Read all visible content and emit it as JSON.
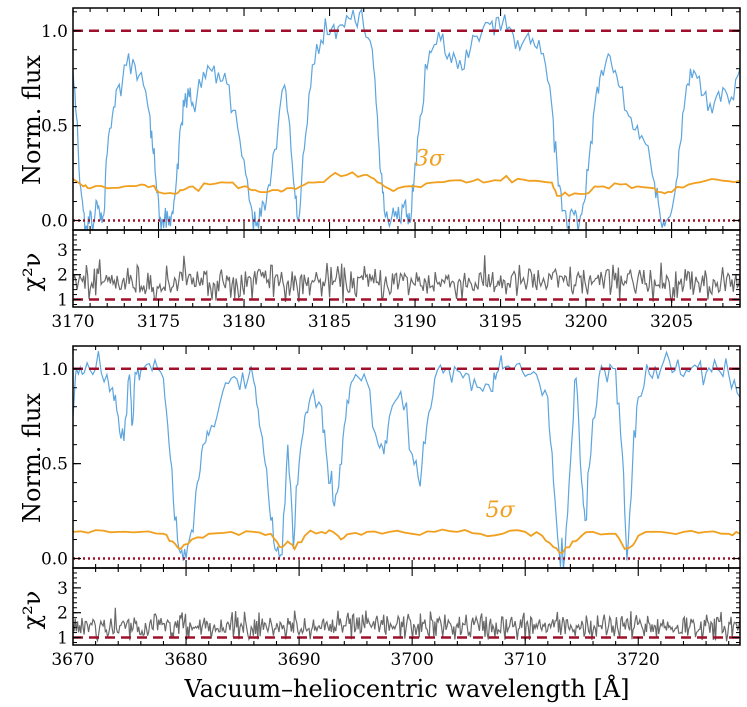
{
  "chart_data": [
    {
      "type": "line",
      "panel": "top-main",
      "ylabel": "Norm. flux",
      "xlim": [
        3170,
        3209
      ],
      "ylim": [
        -0.05,
        1.12
      ],
      "yticks": [
        "0.0",
        "0.5",
        "1.0"
      ],
      "ytick_values": [
        0.0,
        0.5,
        1.0
      ],
      "annotation": "3σ",
      "annotation_pos": {
        "x": 3190,
        "y": 0.29
      },
      "series": [
        {
          "name": "flux",
          "color": "#5DA5DE",
          "x": [
            3170.0,
            3170.2,
            3170.4,
            3170.6,
            3170.8,
            3171.0,
            3171.2,
            3171.4,
            3171.6,
            3171.8,
            3172.0,
            3172.3,
            3172.6,
            3173.0,
            3173.5,
            3174.0,
            3174.5,
            3174.7,
            3174.9,
            3175.1,
            3175.3,
            3175.5,
            3175.7,
            3175.9,
            3176.1,
            3176.3,
            3176.5,
            3176.8,
            3177.0,
            3177.5,
            3178.0,
            3178.5,
            3179.0,
            3179.5,
            3180.0,
            3180.4,
            3180.7,
            3181.0,
            3181.3,
            3181.6,
            3182.0,
            3182.3,
            3182.6,
            3182.9,
            3183.1,
            3183.3,
            3183.6,
            3184.0,
            3184.5,
            3185.0,
            3185.5,
            3186.0,
            3186.5,
            3187.0,
            3187.5,
            3187.8,
            3188.0,
            3188.2,
            3188.5,
            3188.8,
            3189.1,
            3189.4,
            3189.6,
            3189.8,
            3190.0,
            3190.3,
            3190.7,
            3191.0,
            3191.5,
            3192.0,
            3192.5,
            3193.0,
            3193.5,
            3194.0,
            3194.5,
            3195.0,
            3195.5,
            3196.0,
            3196.5,
            3197.0,
            3197.5,
            3198.0,
            3198.3,
            3198.6,
            3199.0,
            3199.3,
            3199.6,
            3199.9,
            3200.2,
            3200.5,
            3200.8,
            3201.2,
            3201.6,
            3202.0,
            3202.5,
            3203.0,
            3203.5,
            3204.0,
            3204.3,
            3204.6,
            3204.9,
            3205.2,
            3205.5,
            3205.8,
            3206.1,
            3206.5,
            3207.0,
            3207.5,
            3208.0,
            3208.5,
            3209.0
          ],
          "y": [
            0.78,
            0.55,
            0.2,
            0.05,
            -0.03,
            0.05,
            -0.02,
            0.1,
            0.0,
            0.03,
            0.35,
            0.55,
            0.7,
            0.82,
            0.85,
            0.78,
            0.55,
            0.35,
            0.15,
            0.02,
            -0.04,
            0.05,
            -0.03,
            0.1,
            0.3,
            0.5,
            0.6,
            0.65,
            0.62,
            0.7,
            0.8,
            0.78,
            0.72,
            0.58,
            0.32,
            0.08,
            -0.03,
            0.02,
            0.1,
            0.25,
            0.5,
            0.7,
            0.55,
            0.2,
            0.02,
            0.1,
            0.45,
            0.82,
            0.95,
            0.98,
            1.02,
            1.08,
            1.05,
            1.02,
            0.9,
            0.55,
            0.25,
            0.05,
            -0.03,
            0.02,
            0.0,
            0.1,
            -0.02,
            0.05,
            0.3,
            0.55,
            0.8,
            0.9,
            0.95,
            0.88,
            0.8,
            0.9,
            0.97,
            1.02,
            1.05,
            1.0,
            1.02,
            0.95,
            0.97,
            0.92,
            0.88,
            0.6,
            0.3,
            0.05,
            -0.03,
            0.03,
            -0.02,
            0.1,
            0.35,
            0.6,
            0.75,
            0.85,
            0.78,
            0.7,
            0.55,
            0.5,
            0.4,
            0.2,
            0.05,
            -0.03,
            0.02,
            0.15,
            0.4,
            0.65,
            0.8,
            0.75,
            0.68,
            0.62,
            0.7,
            0.65,
            0.8
          ]
        },
        {
          "name": "3σ",
          "color": "#F0A01E",
          "x": [
            3170.0,
            3170.6,
            3171.0,
            3172.0,
            3173.0,
            3174.0,
            3174.6,
            3175.0,
            3176.0,
            3176.4,
            3177.0,
            3178.0,
            3179.0,
            3180.0,
            3180.5,
            3181.0,
            3182.0,
            3182.5,
            3183.3,
            3184.0,
            3185.0,
            3186.0,
            3187.0,
            3187.6,
            3188.2,
            3189.0,
            3190.0,
            3191.0,
            3192.0,
            3193.0,
            3194.0,
            3195.0,
            3196.0,
            3197.0,
            3198.0,
            3198.3,
            3199.0,
            3200.0,
            3200.5,
            3201.0,
            3202.0,
            3203.0,
            3204.0,
            3204.4,
            3205.0,
            3206.0,
            3207.0,
            3208.0,
            3209.0
          ],
          "y": [
            0.22,
            0.18,
            0.17,
            0.17,
            0.18,
            0.19,
            0.18,
            0.15,
            0.14,
            0.16,
            0.18,
            0.19,
            0.2,
            0.18,
            0.16,
            0.15,
            0.16,
            0.17,
            0.18,
            0.2,
            0.23,
            0.24,
            0.24,
            0.22,
            0.18,
            0.17,
            0.18,
            0.2,
            0.21,
            0.2,
            0.2,
            0.21,
            0.22,
            0.21,
            0.2,
            0.13,
            0.13,
            0.14,
            0.18,
            0.18,
            0.19,
            0.18,
            0.17,
            0.15,
            0.15,
            0.19,
            0.21,
            0.21,
            0.21
          ]
        }
      ],
      "reference_lines": [
        {
          "y": 1.0,
          "style": "dashed",
          "color": "#A0102A"
        },
        {
          "y": 0.0,
          "style": "dotted",
          "color": "#A0102A"
        }
      ]
    },
    {
      "type": "line",
      "panel": "top-residual",
      "ylabel": "χ²ν",
      "xlim": [
        3170,
        3209
      ],
      "ylim": [
        0.7,
        3.8
      ],
      "yticks": [
        "1",
        "2",
        "3"
      ],
      "ytick_values": [
        1,
        2,
        3
      ],
      "xticks": [
        "3170",
        "3175",
        "3180",
        "3185",
        "3190",
        "3195",
        "3200",
        "3205"
      ],
      "xtick_values": [
        3170,
        3175,
        3180,
        3185,
        3190,
        3195,
        3200,
        3205
      ],
      "series": [
        {
          "name": "chi2",
          "color": "#696969",
          "mean": 1.7,
          "spread": 0.55,
          "n_points": 500
        }
      ],
      "reference_lines": [
        {
          "y": 1.0,
          "style": "dashed",
          "color": "#A0102A"
        }
      ]
    },
    {
      "type": "line",
      "panel": "bottom-main",
      "ylabel": "Norm. flux",
      "xlim": [
        3670,
        3729
      ],
      "ylim": [
        -0.05,
        1.12
      ],
      "yticks": [
        "0.0",
        "0.5",
        "1.0"
      ],
      "ytick_values": [
        0.0,
        0.5,
        1.0
      ],
      "annotation": "5σ",
      "annotation_pos": {
        "x": 3706.5,
        "y": 0.22
      },
      "series": [
        {
          "name": "flux",
          "color": "#5DA5DE",
          "x": [
            3670.0,
            3670.3,
            3671.0,
            3672.0,
            3673.0,
            3673.5,
            3674.0,
            3674.5,
            3675.0,
            3675.2,
            3675.5,
            3676.0,
            3677.0,
            3678.0,
            3678.5,
            3679.0,
            3679.5,
            3680.0,
            3680.5,
            3681.0,
            3681.5,
            3682.0,
            3683.0,
            3684.0,
            3685.0,
            3686.0,
            3686.5,
            3687.0,
            3687.5,
            3688.0,
            3688.5,
            3689.0,
            3689.5,
            3690.0,
            3690.5,
            3691.0,
            3692.0,
            3692.5,
            3693.0,
            3693.5,
            3694.0,
            3694.5,
            3695.0,
            3696.0,
            3697.0,
            3697.5,
            3698.0,
            3699.0,
            3700.0,
            3700.7,
            3701.3,
            3702.0,
            3703.0,
            3704.0,
            3705.0,
            3706.0,
            3707.0,
            3707.5,
            3708.0,
            3709.0,
            3710.0,
            3711.0,
            3712.0,
            3712.5,
            3713.0,
            3713.5,
            3714.0,
            3714.5,
            3715.0,
            3715.3,
            3715.8,
            3716.5,
            3717.0,
            3718.0,
            3718.6,
            3719.0,
            3719.5,
            3720.0,
            3721.0,
            3722.0,
            3723.0,
            3724.0,
            3725.0,
            3726.0,
            3727.0,
            3728.0,
            3729.0
          ],
          "y": [
            0.75,
            1.0,
            0.98,
            1.0,
            0.97,
            0.9,
            0.75,
            0.62,
            0.97,
            0.7,
            0.98,
            0.99,
            0.99,
            0.95,
            0.6,
            0.2,
            0.03,
            0.0,
            0.15,
            0.4,
            0.6,
            0.65,
            0.82,
            0.95,
            0.98,
            0.93,
            0.7,
            0.5,
            0.2,
            0.04,
            0.02,
            0.6,
            0.05,
            0.5,
            0.75,
            0.85,
            0.8,
            0.5,
            0.3,
            0.38,
            0.7,
            0.9,
            0.97,
            0.93,
            0.6,
            0.55,
            0.75,
            0.88,
            0.55,
            0.38,
            0.7,
            0.95,
            1.0,
            0.99,
            0.97,
            0.9,
            0.88,
            0.98,
            1.0,
            1.0,
            0.96,
            0.97,
            0.85,
            0.4,
            0.04,
            0.02,
            0.5,
            0.95,
            0.4,
            0.2,
            0.55,
            0.95,
            1.0,
            1.0,
            0.55,
            -0.01,
            0.5,
            0.85,
            0.97,
            1.0,
            0.98,
            0.96,
            1.02,
            0.98,
            1.0,
            0.97,
            0.85
          ]
        },
        {
          "name": "5σ",
          "color": "#F0A01E",
          "x": [
            3670.0,
            3672.0,
            3674.0,
            3676.0,
            3678.0,
            3678.8,
            3679.5,
            3680.5,
            3682.0,
            3684.0,
            3686.0,
            3687.5,
            3688.3,
            3689.0,
            3689.6,
            3690.5,
            3692.0,
            3693.0,
            3693.7,
            3694.5,
            3696.0,
            3698.0,
            3700.0,
            3702.0,
            3704.0,
            3706.0,
            3708.0,
            3710.0,
            3711.5,
            3712.5,
            3713.3,
            3714.2,
            3715.0,
            3716.0,
            3718.0,
            3718.8,
            3719.3,
            3720.0,
            3722.0,
            3724.0,
            3726.0,
            3728.0,
            3729.0
          ],
          "y": [
            0.14,
            0.15,
            0.14,
            0.14,
            0.13,
            0.09,
            0.05,
            0.1,
            0.13,
            0.14,
            0.14,
            0.13,
            0.06,
            0.09,
            0.05,
            0.12,
            0.14,
            0.14,
            0.1,
            0.13,
            0.14,
            0.14,
            0.13,
            0.14,
            0.14,
            0.13,
            0.13,
            0.14,
            0.12,
            0.06,
            0.03,
            0.09,
            0.12,
            0.14,
            0.13,
            0.05,
            0.06,
            0.12,
            0.14,
            0.14,
            0.14,
            0.13,
            0.13
          ]
        }
      ],
      "reference_lines": [
        {
          "y": 1.0,
          "style": "dashed",
          "color": "#A0102A"
        },
        {
          "y": 0.0,
          "style": "dotted",
          "color": "#A0102A"
        }
      ]
    },
    {
      "type": "line",
      "panel": "bottom-residual",
      "ylabel": "χ²ν",
      "xlabel": "Vacuum–heliocentric wavelength [Å]",
      "xlim": [
        3670,
        3729
      ],
      "ylim": [
        0.7,
        3.8
      ],
      "yticks": [
        "1",
        "2",
        "3"
      ],
      "ytick_values": [
        1,
        2,
        3
      ],
      "xticks": [
        "3670",
        "3680",
        "3690",
        "3700",
        "3710",
        "3720"
      ],
      "xtick_values": [
        3670,
        3680,
        3690,
        3700,
        3710,
        3720
      ],
      "series": [
        {
          "name": "chi2",
          "color": "#696969",
          "mean": 1.45,
          "spread": 0.45,
          "n_points": 600
        }
      ],
      "reference_lines": [
        {
          "y": 1.0,
          "style": "dashed",
          "color": "#A0102A"
        }
      ]
    }
  ]
}
